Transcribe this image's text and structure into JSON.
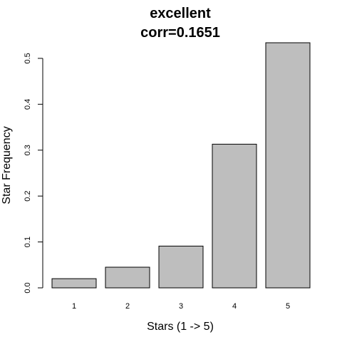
{
  "chart_data": {
    "type": "bar",
    "title": "excellent",
    "subtitle": "corr=0.1651",
    "xlabel": "Stars (1 -> 5)",
    "ylabel": "Star Frequency",
    "categories": [
      "1",
      "2",
      "3",
      "4",
      "5"
    ],
    "values": [
      0.02,
      0.045,
      0.091,
      0.313,
      0.534
    ],
    "ylim": [
      0,
      0.534
    ],
    "yticks": [
      0.0,
      0.1,
      0.2,
      0.3,
      0.4,
      0.5
    ],
    "ytick_labels": [
      "0.0",
      "0.1",
      "0.2",
      "0.3",
      "0.4",
      "0.5"
    ],
    "grid": false,
    "bar_color": "#bebebe",
    "bar_border_color": "#000000"
  }
}
